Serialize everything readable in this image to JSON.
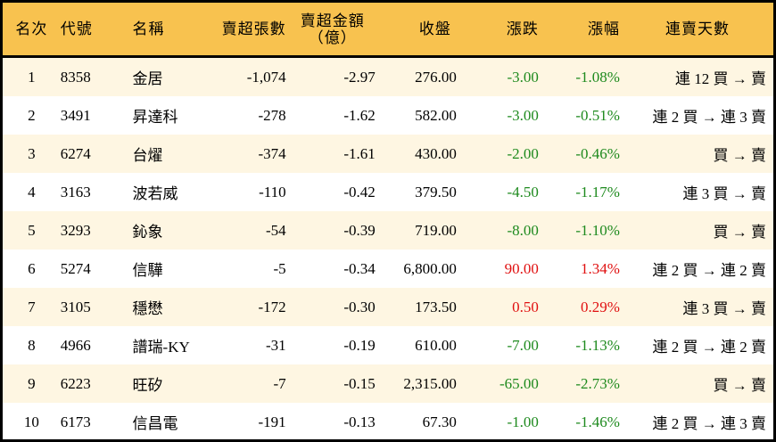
{
  "headers": [
    "名次",
    "代號",
    "名稱",
    "賣超張數",
    "賣超金額\n（億）",
    "收盤",
    "漲跌",
    "漲幅",
    "連賣天數"
  ],
  "colors": {
    "header_bg": "#F8C24F",
    "odd_row_bg": "#FEF6E2",
    "down": "#1E8A1E",
    "up": "#E01010"
  },
  "rows": [
    {
      "rank": "1",
      "code": "8358",
      "name": "金居",
      "lots": "-1,074",
      "amount": "-2.97",
      "close": "276.00",
      "change": "-3.00",
      "pct": "-1.08%",
      "streak": "連 12 買 → 賣",
      "dir": "down"
    },
    {
      "rank": "2",
      "code": "3491",
      "name": "昇達科",
      "lots": "-278",
      "amount": "-1.62",
      "close": "582.00",
      "change": "-3.00",
      "pct": "-0.51%",
      "streak": "連 2 買 → 連 3 賣",
      "dir": "down"
    },
    {
      "rank": "3",
      "code": "6274",
      "name": "台燿",
      "lots": "-374",
      "amount": "-1.61",
      "close": "430.00",
      "change": "-2.00",
      "pct": "-0.46%",
      "streak": "買 → 賣",
      "dir": "down"
    },
    {
      "rank": "4",
      "code": "3163",
      "name": "波若威",
      "lots": "-110",
      "amount": "-0.42",
      "close": "379.50",
      "change": "-4.50",
      "pct": "-1.17%",
      "streak": "連 3 買 → 賣",
      "dir": "down"
    },
    {
      "rank": "5",
      "code": "3293",
      "name": "鈊象",
      "lots": "-54",
      "amount": "-0.39",
      "close": "719.00",
      "change": "-8.00",
      "pct": "-1.10%",
      "streak": "買 → 賣",
      "dir": "down"
    },
    {
      "rank": "6",
      "code": "5274",
      "name": "信驊",
      "lots": "-5",
      "amount": "-0.34",
      "close": "6,800.00",
      "change": "90.00",
      "pct": "1.34%",
      "streak": "連 2 買 → 連 2 賣",
      "dir": "up"
    },
    {
      "rank": "7",
      "code": "3105",
      "name": "穩懋",
      "lots": "-172",
      "amount": "-0.30",
      "close": "173.50",
      "change": "0.50",
      "pct": "0.29%",
      "streak": "連 3 買 → 賣",
      "dir": "up"
    },
    {
      "rank": "8",
      "code": "4966",
      "name": "譜瑞-KY",
      "lots": "-31",
      "amount": "-0.19",
      "close": "610.00",
      "change": "-7.00",
      "pct": "-1.13%",
      "streak": "連 2 買 → 連 2 賣",
      "dir": "down"
    },
    {
      "rank": "9",
      "code": "6223",
      "name": "旺矽",
      "lots": "-7",
      "amount": "-0.15",
      "close": "2,315.00",
      "change": "-65.00",
      "pct": "-2.73%",
      "streak": "買 → 賣",
      "dir": "down"
    },
    {
      "rank": "10",
      "code": "6173",
      "name": "信昌電",
      "lots": "-191",
      "amount": "-0.13",
      "close": "67.30",
      "change": "-1.00",
      "pct": "-1.46%",
      "streak": "連 2 買 → 連 3 賣",
      "dir": "down"
    }
  ]
}
